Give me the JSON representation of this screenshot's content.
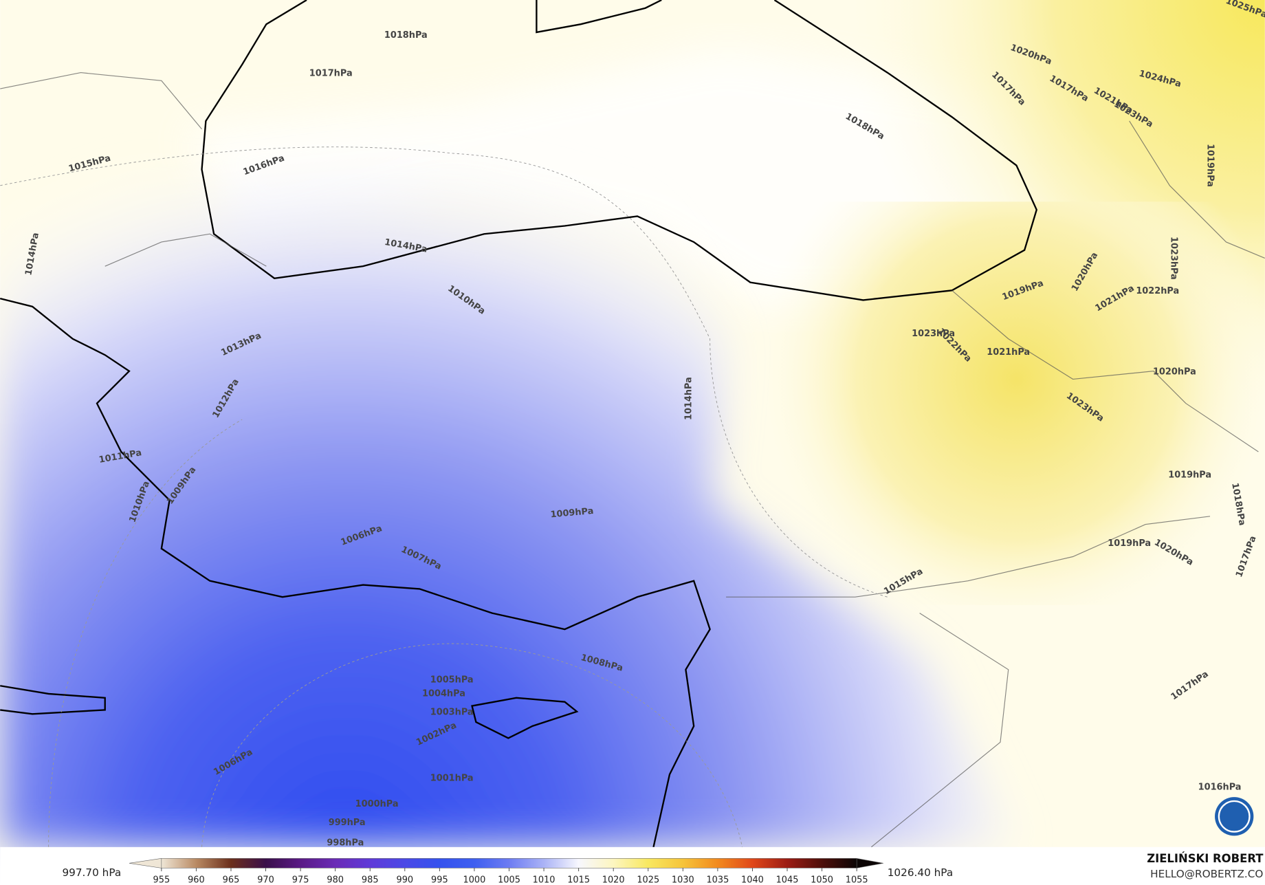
{
  "map": {
    "isobar_labels": [
      "1018hPa",
      "1017hPa",
      "1016hPa",
      "1015hPa",
      "1014hPa",
      "1014hPa",
      "1010hPa",
      "1013hPa",
      "1012hPa",
      "1011hPa",
      "1010hPa",
      "1009hPa",
      "1006hPa",
      "1007hPa",
      "1009hPa",
      "1014hPa",
      "1015hPa",
      "1008hPa",
      "1005hPa",
      "1004hPa",
      "1003hPa",
      "1002hPa",
      "1001hPa",
      "1006hPa",
      "1000hPa",
      "999hPa",
      "998hPa",
      "1018hPa",
      "1020hPa",
      "1017hPa",
      "1017hPa",
      "1024hPa",
      "1025hPa",
      "1021hPa",
      "1023hPa",
      "1019hPa",
      "1023hPa",
      "1020hPa",
      "1019hPa",
      "1021hPa",
      "1022hPa",
      "1023hPa",
      "1022hPa",
      "1021hPa",
      "1020hPa",
      "1023hPa",
      "1019hPa",
      "1018hPa",
      "1019hPa",
      "1020hPa",
      "1017hPa",
      "1017hPa",
      "1016hPa"
    ]
  },
  "colorbar": {
    "min_label": "997.70 hPa",
    "max_label": "1026.40 hPa",
    "ticks": [
      955,
      960,
      965,
      970,
      975,
      980,
      985,
      990,
      995,
      1000,
      1005,
      1010,
      1015,
      1020,
      1025,
      1030,
      1035,
      1040,
      1045,
      1050,
      1055
    ],
    "colors": [
      "#efe6d6",
      "#b98a63",
      "#6b2f1c",
      "#3a0f4a",
      "#5a1a86",
      "#6a2bb6",
      "#5f3ad8",
      "#4b49e6",
      "#3552ee",
      "#3f5ff0",
      "#6d7cf2",
      "#aab3f6",
      "#f7f7fe",
      "#fdf6c0",
      "#f8e860",
      "#f6c43a",
      "#f28a1e",
      "#e0481a",
      "#9c1c14",
      "#4e0f0a",
      "#0b0505"
    ]
  },
  "credit": {
    "author": "ZIELIŃSKI ROBERT",
    "email": "HELLO@ROBERTZ.CO"
  }
}
